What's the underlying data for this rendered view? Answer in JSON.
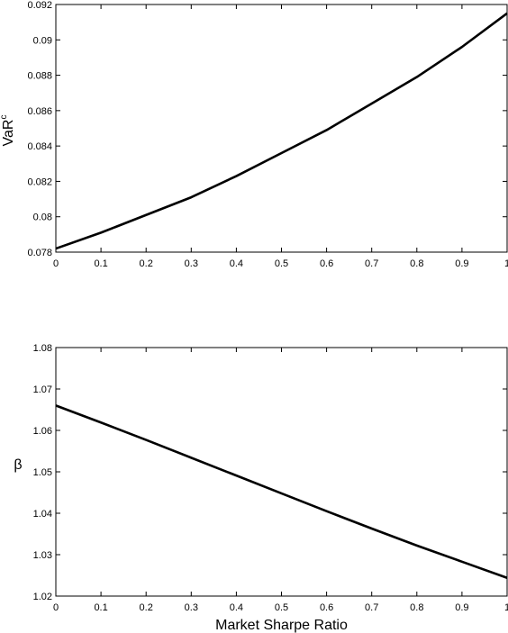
{
  "chart_data": [
    {
      "type": "line",
      "title": "",
      "xlabel": "",
      "ylabel": "VaR",
      "ylabel_superscript": "c",
      "xlim": [
        0,
        1
      ],
      "ylim": [
        0.078,
        0.092
      ],
      "xticks": [
        "0",
        "0.1",
        "0.2",
        "0.3",
        "0.4",
        "0.5",
        "0.6",
        "0.7",
        "0.8",
        "0.9",
        "1"
      ],
      "yticks": [
        "0.078",
        "0.08",
        "0.082",
        "0.084",
        "0.086",
        "0.088",
        "0.09",
        "0.092"
      ],
      "grid": false,
      "series": [
        {
          "x": [
            0,
            0.1,
            0.2,
            0.3,
            0.4,
            0.5,
            0.6,
            0.7,
            0.8,
            0.9,
            1.0
          ],
          "y": [
            0.0782,
            0.0791,
            0.0801,
            0.0811,
            0.0823,
            0.0836,
            0.0849,
            0.0864,
            0.0879,
            0.0896,
            0.0915
          ]
        }
      ]
    },
    {
      "type": "line",
      "title": "",
      "xlabel": "Market Sharpe Ratio",
      "ylabel": "β",
      "xlim": [
        0,
        1
      ],
      "ylim": [
        1.02,
        1.08
      ],
      "xticks": [
        "0",
        "0.1",
        "0.2",
        "0.3",
        "0.4",
        "0.5",
        "0.6",
        "0.7",
        "0.8",
        "0.9",
        "1"
      ],
      "yticks": [
        "1.02",
        "1.03",
        "1.04",
        "1.05",
        "1.06",
        "1.07",
        "1.08"
      ],
      "grid": false,
      "series": [
        {
          "x": [
            0,
            0.1,
            0.2,
            0.3,
            0.4,
            0.5,
            0.6,
            0.7,
            0.8,
            0.9,
            1.0
          ],
          "y": [
            1.066,
            1.0619,
            1.0577,
            1.0534,
            1.0491,
            1.0448,
            1.0405,
            1.0363,
            1.0322,
            1.0283,
            1.0244
          ]
        }
      ]
    }
  ]
}
